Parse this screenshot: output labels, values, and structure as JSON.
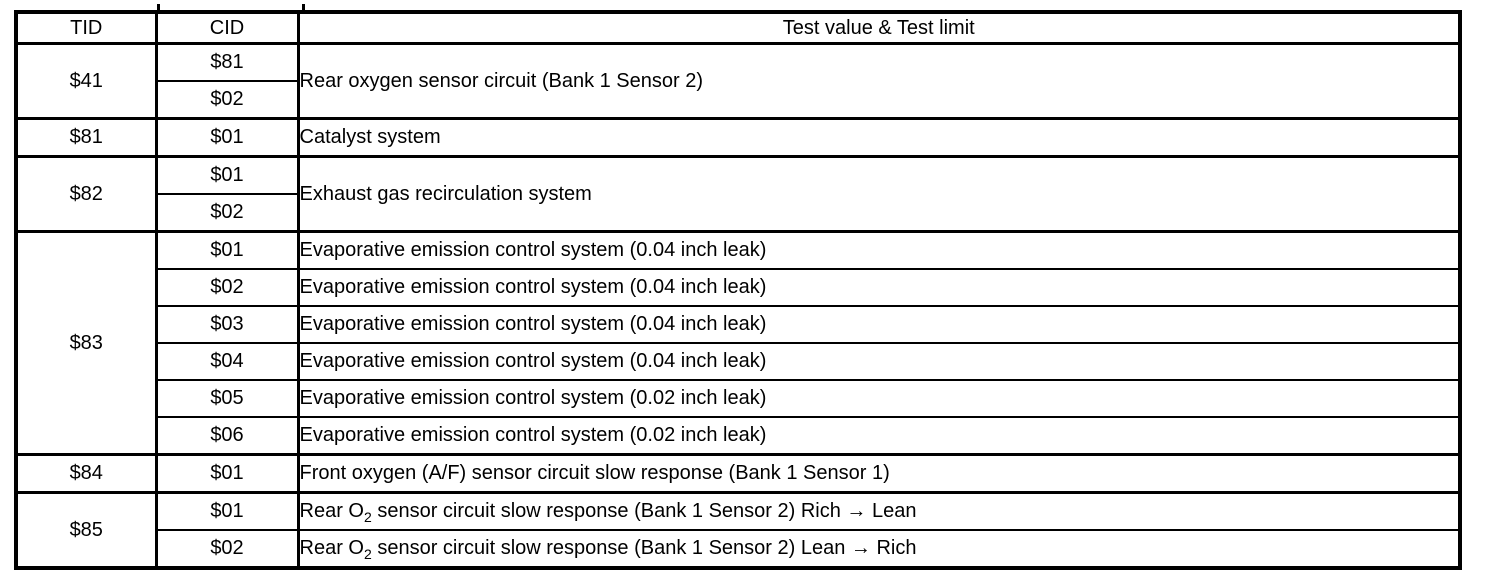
{
  "table": {
    "headers": [
      "TID",
      "CID",
      "Test value & Test limit"
    ],
    "groups": [
      {
        "tid": "$41",
        "merged_desc": [
          "Rear oxygen sensor circuit (Bank 1 Sensor 2)"
        ],
        "rows": [
          {
            "cid": "$81"
          },
          {
            "cid": "$02"
          }
        ]
      },
      {
        "tid": "$81",
        "rows": [
          {
            "cid": "$01",
            "desc": [
              "Catalyst system"
            ]
          }
        ]
      },
      {
        "tid": "$82",
        "merged_desc": [
          "Exhaust gas recirculation system"
        ],
        "rows": [
          {
            "cid": "$01"
          },
          {
            "cid": "$02"
          }
        ]
      },
      {
        "tid": "$83",
        "rows": [
          {
            "cid": "$01",
            "desc": [
              "Evaporative emission control system (0.04 inch leak)"
            ]
          },
          {
            "cid": "$02",
            "desc": [
              "Evaporative emission control system (0.04 inch leak)"
            ]
          },
          {
            "cid": "$03",
            "desc": [
              "Evaporative emission control system (0.04 inch leak)"
            ]
          },
          {
            "cid": "$04",
            "desc": [
              "Evaporative emission control system (0.04 inch leak)"
            ]
          },
          {
            "cid": "$05",
            "desc": [
              "Evaporative emission control system (0.02 inch leak)"
            ]
          },
          {
            "cid": "$06",
            "desc": [
              "Evaporative emission control system (0.02 inch leak)"
            ]
          }
        ]
      },
      {
        "tid": "$84",
        "rows": [
          {
            "cid": "$01",
            "desc": [
              "Front oxygen (A/F) sensor circuit slow response (Bank 1 Sensor 1)"
            ]
          }
        ]
      },
      {
        "tid": "$85",
        "rows": [
          {
            "cid": "$01",
            "desc": [
              "Rear O",
              {
                "sub": "2"
              },
              " sensor circuit slow response (Bank 1 Sensor 2) Rich → Lean"
            ]
          },
          {
            "cid": "$02",
            "desc": [
              "Rear O",
              {
                "sub": "2"
              },
              " sensor circuit slow response (Bank 1 Sensor 2) Lean → Rich"
            ]
          }
        ]
      }
    ]
  }
}
